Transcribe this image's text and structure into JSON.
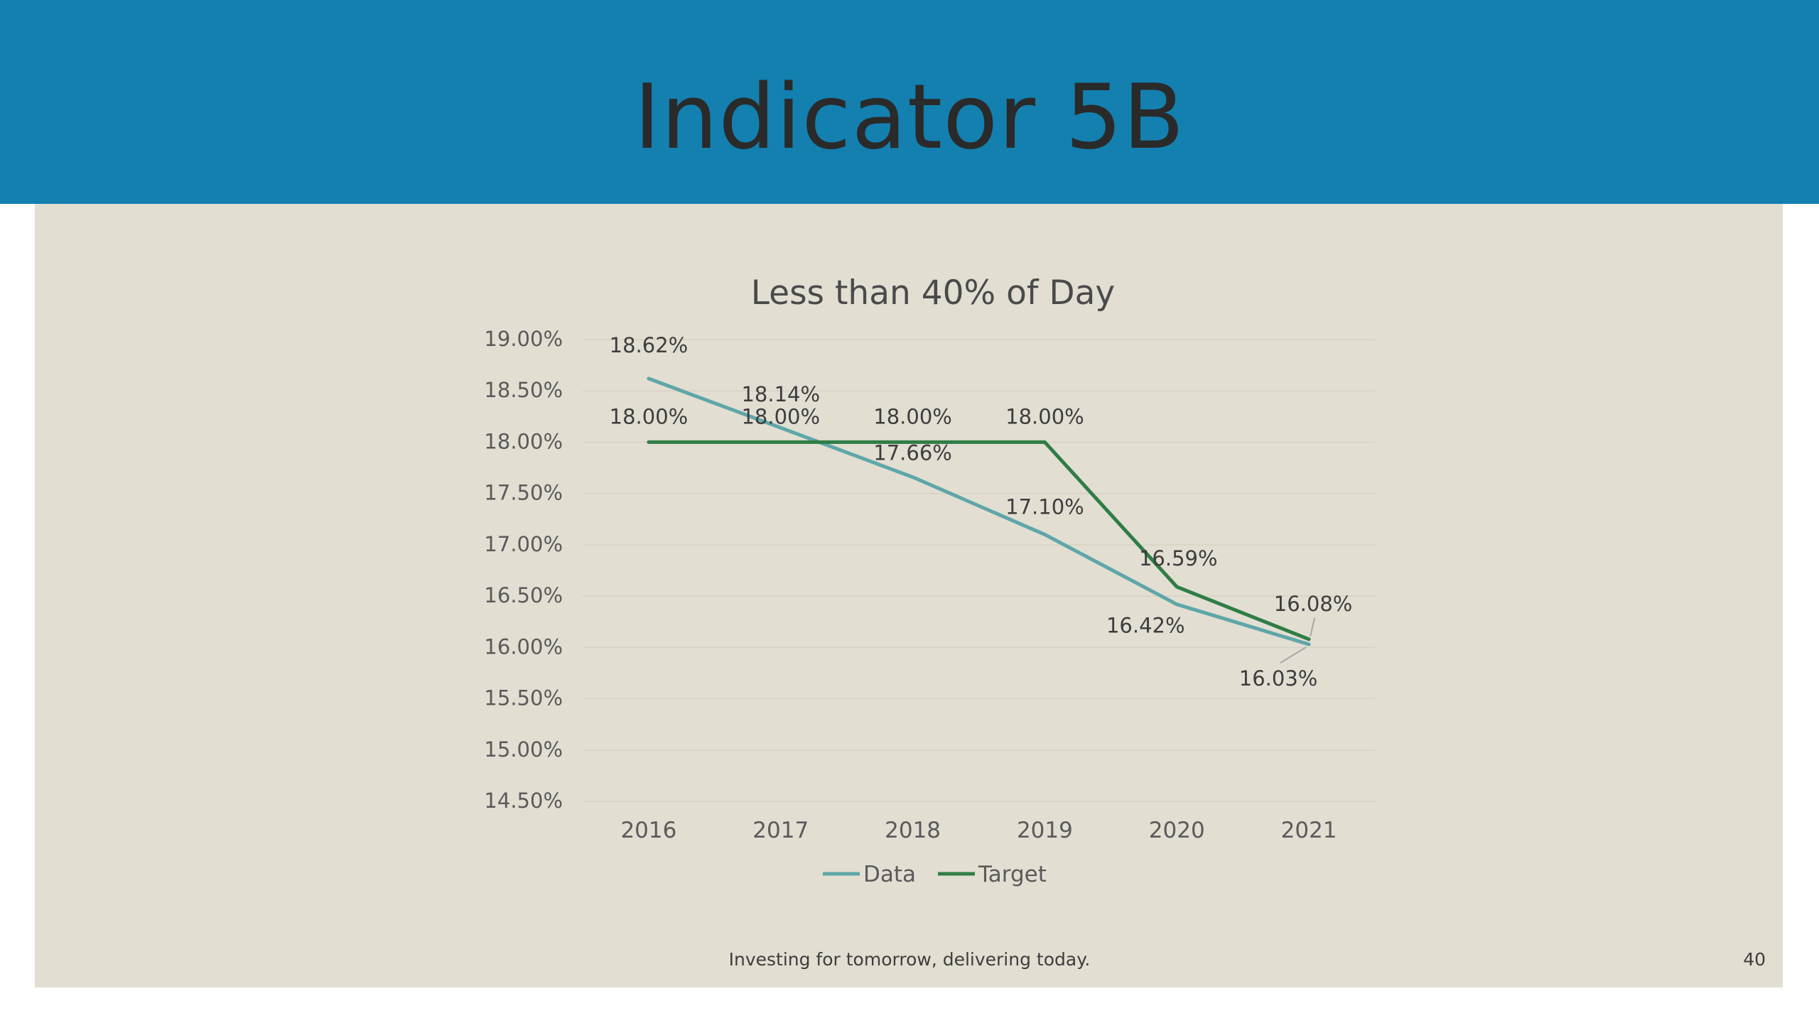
{
  "slide": {
    "title": "Indicator 5B",
    "footer": "Investing for tomorrow, delivering today.",
    "page_number": "40"
  },
  "colors": {
    "header": "#1380b0",
    "panel": "#e2ded2",
    "data_series": "#5fa6a8",
    "target_series": "#2f7d45"
  },
  "chart_data": {
    "type": "line",
    "title": "Less than 40% of Day",
    "xlabel": "",
    "ylabel": "",
    "categories": [
      "2016",
      "2017",
      "2018",
      "2019",
      "2020",
      "2021"
    ],
    "y_ticks": [
      "19.00%",
      "18.50%",
      "18.00%",
      "17.50%",
      "17.00%",
      "16.50%",
      "16.00%",
      "15.50%",
      "15.00%",
      "14.50%"
    ],
    "ylim": [
      14.5,
      19.0
    ],
    "grid": true,
    "legend": "bottom",
    "series": [
      {
        "name": "Data",
        "values": [
          18.62,
          18.14,
          17.66,
          17.1,
          16.42,
          16.03
        ],
        "labels": [
          "18.62%",
          "18.14%",
          "17.66%",
          "17.10%",
          "16.42%",
          "16.03%"
        ]
      },
      {
        "name": "Target",
        "values": [
          18.0,
          18.0,
          18.0,
          18.0,
          16.59,
          16.08
        ],
        "labels": [
          "18.00%",
          "18.00%",
          "18.00%",
          "18.00%",
          "16.59%",
          "16.08%"
        ]
      }
    ]
  }
}
